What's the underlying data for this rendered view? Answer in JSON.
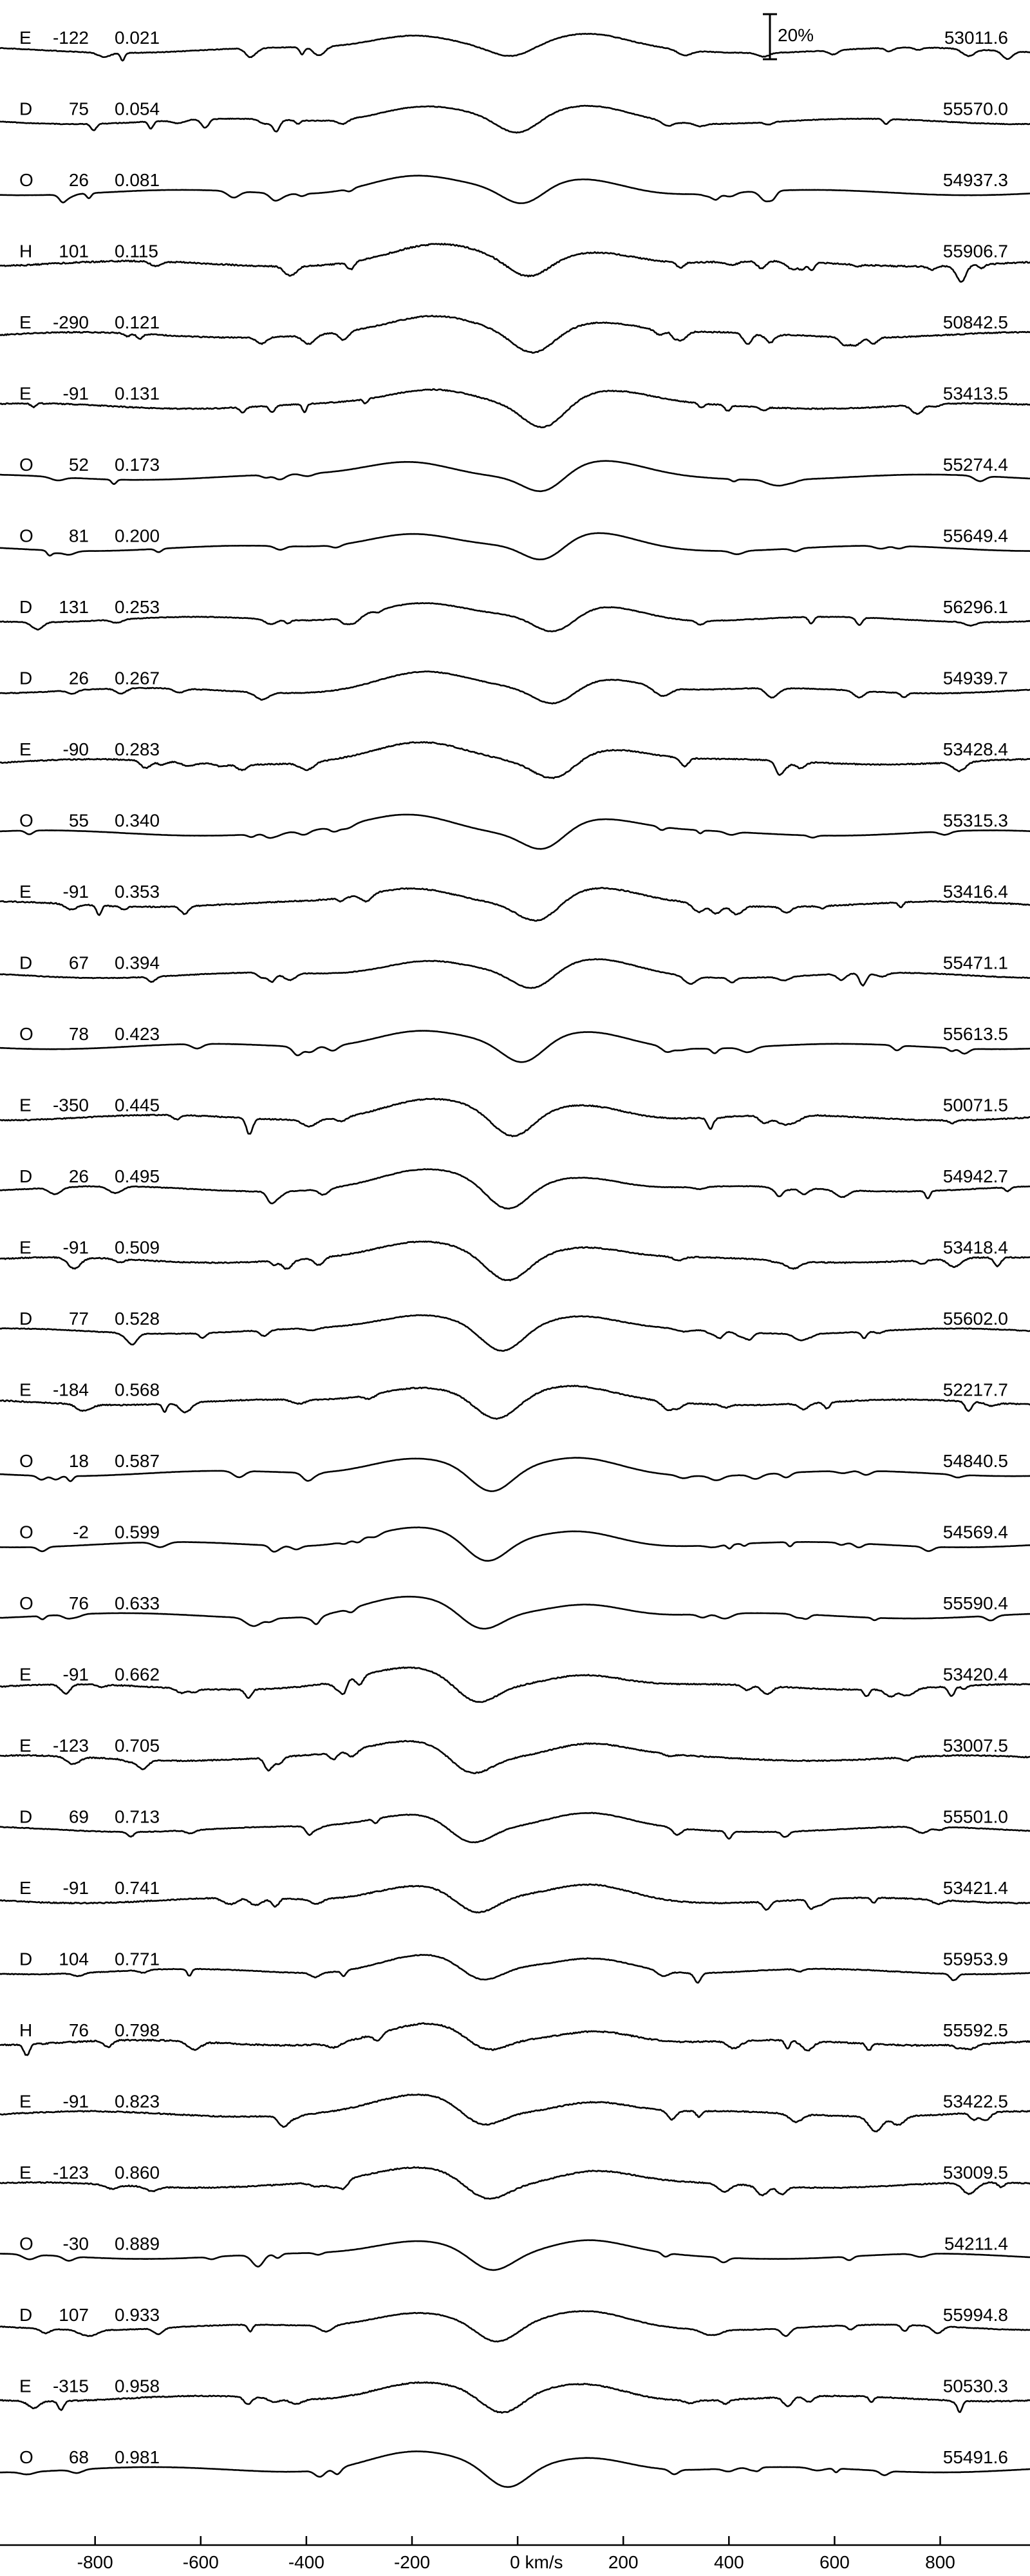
{
  "chart_data": {
    "type": "line",
    "xlabel": "km/s",
    "xlim": [
      -980,
      970
    ],
    "xticks": [
      -800,
      -600,
      -400,
      -200,
      0,
      200,
      400,
      600,
      800
    ],
    "xtick_labels": [
      "-800",
      "-600",
      "-400",
      "-200",
      "0 km/s",
      "200",
      "400",
      "600",
      "800"
    ],
    "scale_bar": {
      "label": "20%",
      "value": 20
    },
    "grid": false,
    "spectra": [
      {
        "instrument": "E",
        "velocity": "-122",
        "phase": "0.021",
        "date": "53011.6",
        "depth": 0.3,
        "center": -10,
        "left_peak": -190,
        "right_peak": 130,
        "noise": 0.5
      },
      {
        "instrument": "D",
        "velocity": "75",
        "phase": "0.054",
        "date": "55570.0",
        "depth": 0.55,
        "center": 0,
        "left_peak": -180,
        "right_peak": 140,
        "noise": 0.5
      },
      {
        "instrument": "O",
        "velocity": "26",
        "phase": "0.081",
        "date": "54937.3",
        "depth": 0.55,
        "center": 10,
        "left_peak": -200,
        "right_peak": 130,
        "noise": 0.1
      },
      {
        "instrument": "H",
        "velocity": "101",
        "phase": "0.115",
        "date": "55906.7",
        "depth": 0.55,
        "center": 20,
        "left_peak": -150,
        "right_peak": 150,
        "noise": 1.0
      },
      {
        "instrument": "E",
        "velocity": "-290",
        "phase": "0.121",
        "date": "50842.5",
        "depth": 0.65,
        "center": 30,
        "left_peak": -150,
        "right_peak": 150,
        "noise": 0.8
      },
      {
        "instrument": "E",
        "velocity": "-91",
        "phase": "0.131",
        "date": "53413.5",
        "depth": 0.75,
        "center": 50,
        "left_peak": -150,
        "right_peak": 170,
        "noise": 0.8
      },
      {
        "instrument": "O",
        "velocity": "52",
        "phase": "0.173",
        "date": "55274.4",
        "depth": 0.6,
        "center": 50,
        "left_peak": -200,
        "right_peak": 160,
        "noise": 0.1
      },
      {
        "instrument": "O",
        "velocity": "81",
        "phase": "0.200",
        "date": "55649.4",
        "depth": 0.6,
        "center": 50,
        "left_peak": -200,
        "right_peak": 150,
        "noise": 0.1
      },
      {
        "instrument": "D",
        "velocity": "131",
        "phase": "0.253",
        "date": "56296.1",
        "depth": 0.6,
        "center": 70,
        "left_peak": -190,
        "right_peak": 170,
        "noise": 0.5
      },
      {
        "instrument": "D",
        "velocity": "26",
        "phase": "0.267",
        "date": "54939.7",
        "depth": 0.55,
        "center": 70,
        "left_peak": -180,
        "right_peak": 170,
        "noise": 0.5
      },
      {
        "instrument": "E",
        "velocity": "-90",
        "phase": "0.283",
        "date": "53428.4",
        "depth": 0.6,
        "center": 70,
        "left_peak": -180,
        "right_peak": 170,
        "noise": 0.8
      },
      {
        "instrument": "O",
        "velocity": "55",
        "phase": "0.340",
        "date": "55315.3",
        "depth": 0.6,
        "center": 50,
        "left_peak": -200,
        "right_peak": 150,
        "noise": 0.1
      },
      {
        "instrument": "E",
        "velocity": "-91",
        "phase": "0.353",
        "date": "53416.4",
        "depth": 0.65,
        "center": 40,
        "left_peak": -190,
        "right_peak": 150,
        "noise": 0.8
      },
      {
        "instrument": "D",
        "velocity": "67",
        "phase": "0.394",
        "date": "55471.1",
        "depth": 0.6,
        "center": 30,
        "left_peak": -170,
        "right_peak": 150,
        "noise": 0.5
      },
      {
        "instrument": "O",
        "velocity": "78",
        "phase": "0.423",
        "date": "55613.5",
        "depth": 0.7,
        "center": 10,
        "left_peak": -190,
        "right_peak": 140,
        "noise": 0.1
      },
      {
        "instrument": "E",
        "velocity": "-350",
        "phase": "0.445",
        "date": "50071.5",
        "depth": 0.8,
        "center": -10,
        "left_peak": -170,
        "right_peak": 130,
        "noise": 0.8
      },
      {
        "instrument": "D",
        "velocity": "26",
        "phase": "0.495",
        "date": "54942.7",
        "depth": 0.8,
        "center": -20,
        "left_peak": -170,
        "right_peak": 120,
        "noise": 0.5
      },
      {
        "instrument": "E",
        "velocity": "-91",
        "phase": "0.509",
        "date": "53418.4",
        "depth": 0.75,
        "center": -20,
        "left_peak": -170,
        "right_peak": 120,
        "noise": 0.8
      },
      {
        "instrument": "D",
        "velocity": "77",
        "phase": "0.528",
        "date": "55602.0",
        "depth": 0.75,
        "center": -30,
        "left_peak": -170,
        "right_peak": 110,
        "noise": 0.5
      },
      {
        "instrument": "E",
        "velocity": "-184",
        "phase": "0.568",
        "date": "52217.7",
        "depth": 0.7,
        "center": -40,
        "left_peak": -180,
        "right_peak": 100,
        "noise": 0.8
      },
      {
        "instrument": "O",
        "velocity": "18",
        "phase": "0.587",
        "date": "54840.5",
        "depth": 0.75,
        "center": -50,
        "left_peak": -200,
        "right_peak": 120,
        "noise": 0.1
      },
      {
        "instrument": "O",
        "velocity": "-2",
        "phase": "0.599",
        "date": "54569.4",
        "depth": 0.75,
        "center": -60,
        "left_peak": -200,
        "right_peak": 120,
        "noise": 0.1
      },
      {
        "instrument": "O",
        "velocity": "76",
        "phase": "0.633",
        "date": "55590.4",
        "depth": 0.6,
        "center": -70,
        "left_peak": -210,
        "right_peak": 130,
        "noise": 0.1
      },
      {
        "instrument": "E",
        "velocity": "-91",
        "phase": "0.662",
        "date": "53420.4",
        "depth": 0.65,
        "center": -80,
        "left_peak": -200,
        "right_peak": 120,
        "noise": 0.8
      },
      {
        "instrument": "E",
        "velocity": "-123",
        "phase": "0.705",
        "date": "53007.5",
        "depth": 0.65,
        "center": -90,
        "left_peak": -190,
        "right_peak": 130,
        "noise": 0.8
      },
      {
        "instrument": "D",
        "velocity": "69",
        "phase": "0.713",
        "date": "55501.0",
        "depth": 0.6,
        "center": -90,
        "left_peak": -190,
        "right_peak": 130,
        "noise": 0.5
      },
      {
        "instrument": "E",
        "velocity": "-91",
        "phase": "0.741",
        "date": "53421.4",
        "depth": 0.6,
        "center": -80,
        "left_peak": -190,
        "right_peak": 140,
        "noise": 0.8
      },
      {
        "instrument": "D",
        "velocity": "104",
        "phase": "0.771",
        "date": "55953.9",
        "depth": 0.55,
        "center": -70,
        "left_peak": -180,
        "right_peak": 150,
        "noise": 0.5
      },
      {
        "instrument": "H",
        "velocity": "76",
        "phase": "0.798",
        "date": "55592.5",
        "depth": 0.5,
        "center": -60,
        "left_peak": -170,
        "right_peak": 150,
        "noise": 1.0
      },
      {
        "instrument": "E",
        "velocity": "-91",
        "phase": "0.823",
        "date": "53422.5",
        "depth": 0.55,
        "center": -70,
        "left_peak": -180,
        "right_peak": 140,
        "noise": 0.8
      },
      {
        "instrument": "E",
        "velocity": "-123",
        "phase": "0.860",
        "date": "53009.5",
        "depth": 0.55,
        "center": -60,
        "left_peak": -180,
        "right_peak": 140,
        "noise": 0.8
      },
      {
        "instrument": "O",
        "velocity": "-30",
        "phase": "0.889",
        "date": "54211.4",
        "depth": 0.55,
        "center": -50,
        "left_peak": -180,
        "right_peak": 130,
        "noise": 0.1
      },
      {
        "instrument": "D",
        "velocity": "107",
        "phase": "0.933",
        "date": "55994.8",
        "depth": 0.6,
        "center": -40,
        "left_peak": -190,
        "right_peak": 130,
        "noise": 0.5
      },
      {
        "instrument": "E",
        "velocity": "-315",
        "phase": "0.958",
        "date": "50530.3",
        "depth": 0.65,
        "center": -30,
        "left_peak": -190,
        "right_peak": 130,
        "noise": 0.8
      },
      {
        "instrument": "O",
        "velocity": "68",
        "phase": "0.981",
        "date": "55491.6",
        "depth": 0.7,
        "center": -20,
        "left_peak": -200,
        "right_peak": 140,
        "noise": 0.1
      }
    ]
  }
}
